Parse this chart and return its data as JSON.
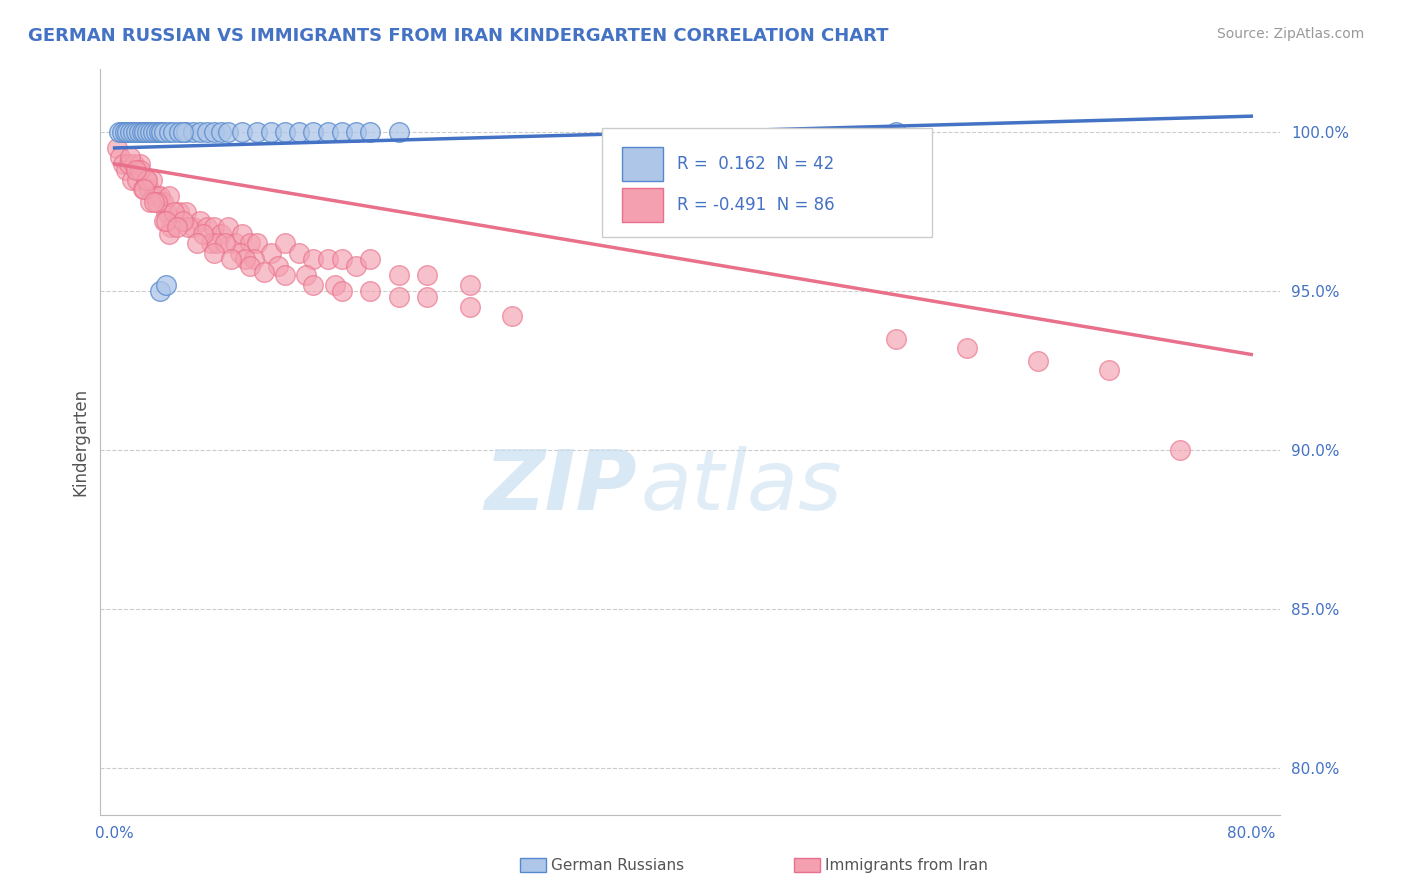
{
  "title": "GERMAN RUSSIAN VS IMMIGRANTS FROM IRAN KINDERGARTEN CORRELATION CHART",
  "source_text": "Source: ZipAtlas.com",
  "ylabel": "Kindergarten",
  "x_ticks": [
    0.0,
    10.0,
    20.0,
    30.0,
    40.0,
    50.0,
    60.0,
    70.0,
    80.0
  ],
  "x_tick_labels": [
    "0.0%",
    "",
    "",
    "",
    "",
    "",
    "",
    "",
    "80.0%"
  ],
  "y_ticks": [
    80.0,
    85.0,
    90.0,
    95.0,
    100.0
  ],
  "y_tick_labels": [
    "80.0%",
    "85.0%",
    "90.0%",
    "95.0%",
    "100.0%"
  ],
  "xlim": [
    -1.0,
    82.0
  ],
  "ylim": [
    78.5,
    102.0
  ],
  "watermark_zip": "ZIP",
  "watermark_atlas": "atlas",
  "watermark_color_zip": "#c8dff0",
  "watermark_color_atlas": "#c8dff0",
  "blue_scatter_x": [
    0.3,
    0.5,
    0.7,
    0.9,
    1.1,
    1.3,
    1.5,
    1.7,
    1.9,
    2.1,
    2.3,
    2.5,
    2.7,
    2.9,
    3.1,
    3.3,
    3.5,
    3.8,
    4.1,
    4.5,
    5.0,
    5.5,
    6.0,
    6.5,
    7.0,
    7.5,
    8.0,
    9.0,
    10.0,
    11.0,
    12.0,
    13.0,
    14.0,
    15.0,
    16.0,
    17.0,
    18.0,
    20.0,
    3.2,
    3.6,
    4.8,
    55.0
  ],
  "blue_scatter_y": [
    100.0,
    100.0,
    100.0,
    100.0,
    100.0,
    100.0,
    100.0,
    100.0,
    100.0,
    100.0,
    100.0,
    100.0,
    100.0,
    100.0,
    100.0,
    100.0,
    100.0,
    100.0,
    100.0,
    100.0,
    100.0,
    100.0,
    100.0,
    100.0,
    100.0,
    100.0,
    100.0,
    100.0,
    100.0,
    100.0,
    100.0,
    100.0,
    100.0,
    100.0,
    100.0,
    100.0,
    100.0,
    100.0,
    95.0,
    95.2,
    100.0,
    100.0
  ],
  "pink_scatter_x": [
    0.2,
    0.4,
    0.6,
    0.8,
    1.0,
    1.2,
    1.4,
    1.6,
    1.8,
    2.0,
    2.2,
    2.4,
    2.6,
    2.8,
    3.0,
    3.2,
    3.4,
    3.6,
    3.8,
    4.0,
    4.5,
    5.0,
    5.5,
    6.0,
    6.5,
    7.0,
    7.5,
    8.0,
    8.5,
    9.0,
    9.5,
    10.0,
    11.0,
    12.0,
    13.0,
    14.0,
    15.0,
    16.0,
    17.0,
    18.0,
    20.0,
    22.0,
    25.0,
    3.5,
    4.2,
    2.5,
    3.8,
    5.2,
    6.8,
    7.2,
    8.8,
    9.8,
    11.5,
    13.5,
    15.5,
    1.1,
    1.8,
    2.3,
    3.0,
    4.8,
    6.2,
    7.8,
    9.2,
    1.5,
    2.1,
    2.8,
    3.6,
    4.4,
    5.8,
    7.0,
    8.2,
    9.5,
    10.5,
    12.0,
    14.0,
    16.0,
    18.0,
    20.0,
    22.0,
    25.0,
    28.0,
    55.0,
    60.0,
    65.0,
    70.0,
    75.0
  ],
  "pink_scatter_y": [
    99.5,
    99.2,
    99.0,
    98.8,
    99.0,
    98.5,
    99.0,
    98.5,
    99.0,
    98.2,
    98.5,
    98.2,
    98.5,
    98.0,
    98.0,
    98.0,
    97.8,
    97.5,
    98.0,
    97.0,
    97.5,
    97.5,
    97.0,
    97.2,
    97.0,
    97.0,
    96.8,
    97.0,
    96.5,
    96.8,
    96.5,
    96.5,
    96.2,
    96.5,
    96.2,
    96.0,
    96.0,
    96.0,
    95.8,
    96.0,
    95.5,
    95.5,
    95.2,
    97.2,
    97.5,
    97.8,
    96.8,
    97.0,
    96.5,
    96.5,
    96.2,
    96.0,
    95.8,
    95.5,
    95.2,
    99.2,
    98.8,
    98.5,
    97.8,
    97.2,
    96.8,
    96.5,
    96.0,
    98.8,
    98.2,
    97.8,
    97.2,
    97.0,
    96.5,
    96.2,
    96.0,
    95.8,
    95.6,
    95.5,
    95.2,
    95.0,
    95.0,
    94.8,
    94.8,
    94.5,
    94.2,
    93.5,
    93.2,
    92.8,
    92.5,
    90.0
  ],
  "blue_line_x0": 0.0,
  "blue_line_x1": 80.0,
  "blue_line_y0": 99.5,
  "blue_line_y1": 100.5,
  "pink_line_x0": 0.0,
  "pink_line_x1": 80.0,
  "pink_line_y0": 99.0,
  "pink_line_y1": 93.0,
  "blue_line_color": "#4472c4",
  "pink_line_color": "#e8708a",
  "blue_dot_color": "#aec6e8",
  "pink_dot_color": "#f4a0b0",
  "blue_dot_edge": "#5588cc",
  "pink_dot_edge": "#e8708a",
  "grid_color": "#cccccc",
  "background_color": "#ffffff",
  "title_color": "#4472c4",
  "source_color": "#999999",
  "tick_color": "#4472c4",
  "ylabel_color": "#555555",
  "legend_text_color": "#4472c4",
  "legend_r_color": "#333333"
}
